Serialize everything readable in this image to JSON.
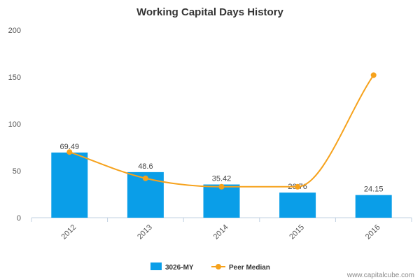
{
  "chart_data": {
    "type": "bar",
    "title": "Working Capital Days History",
    "categories": [
      "2012",
      "2013",
      "2014",
      "2015",
      "2016"
    ],
    "ylim": [
      0,
      200
    ],
    "yticks": [
      0,
      50,
      100,
      150,
      200
    ],
    "series": [
      {
        "name": "3026-MY",
        "type": "bar",
        "color": "#0a9ee8",
        "values": [
          69.49,
          48.6,
          35.42,
          26.76,
          24.15
        ],
        "labels": [
          "69.49",
          "48.6",
          "35.42",
          "26.76",
          "24.15"
        ]
      },
      {
        "name": "Peer Median",
        "type": "line",
        "color": "#f6a21c",
        "values": [
          70,
          42,
          33,
          33,
          152
        ]
      }
    ],
    "grid": false,
    "legend": "bottom-center"
  },
  "credit": "www.capitalcube.com"
}
